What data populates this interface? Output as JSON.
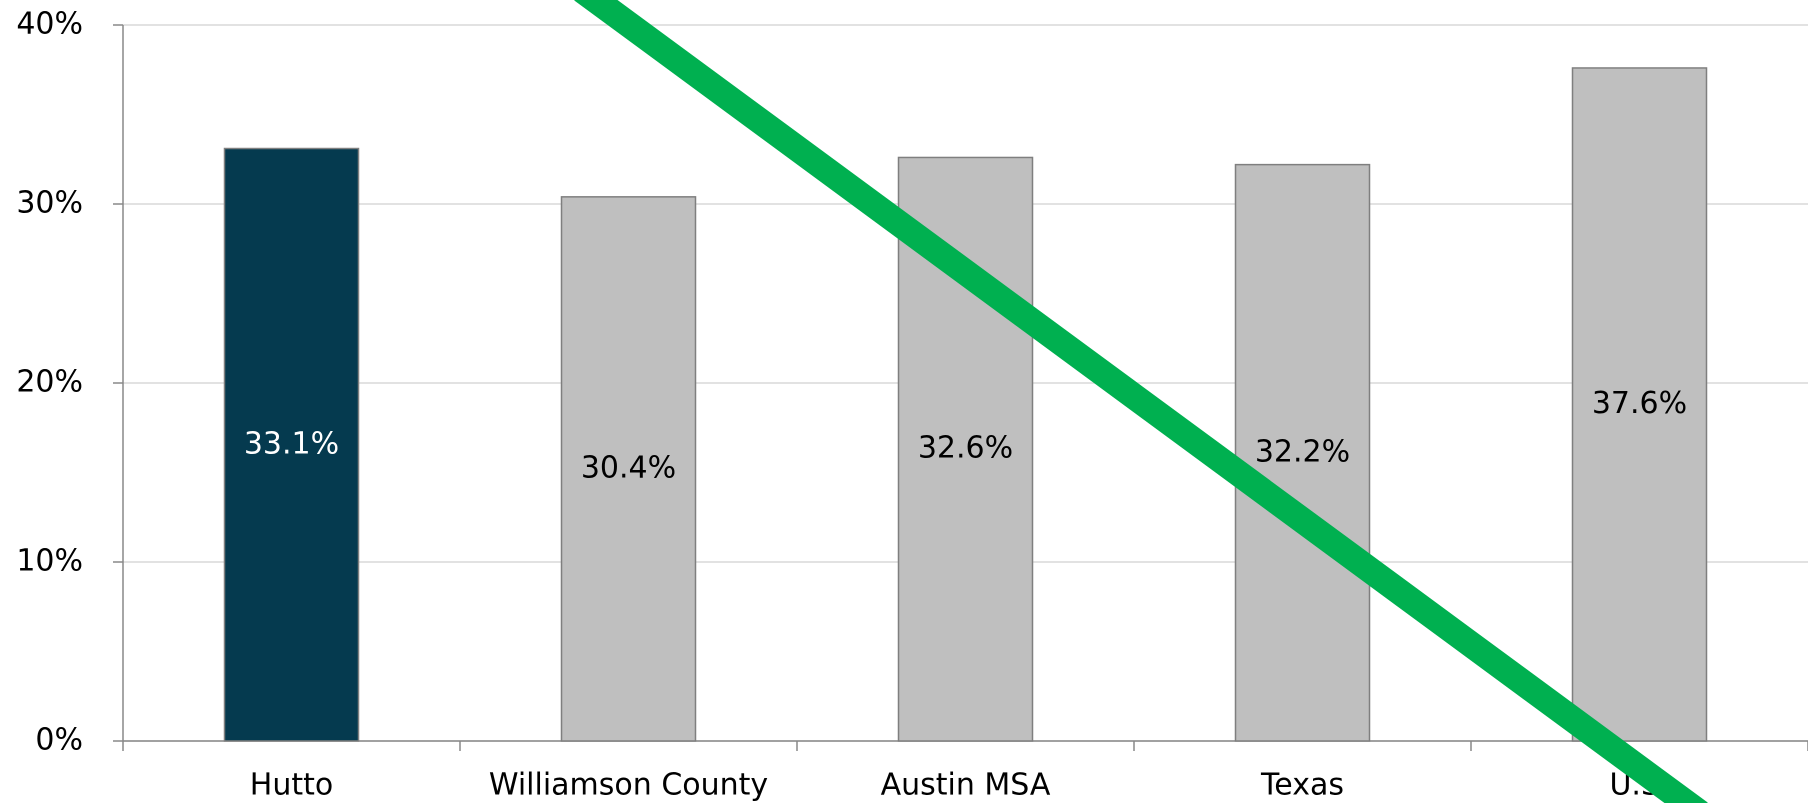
{
  "chart_data": {
    "type": "bar",
    "categories": [
      "Hutto",
      "Williamson County",
      "Austin MSA",
      "Texas",
      "U.S."
    ],
    "values": [
      33.1,
      30.4,
      32.6,
      32.2,
      37.6
    ],
    "value_labels": [
      "33.1%",
      "30.4%",
      "32.6%",
      "32.2%",
      "37.6%"
    ],
    "colors": [
      "#053a4f",
      "#bfbfbf",
      "#bfbfbf",
      "#bfbfbf",
      "#bfbfbf"
    ],
    "ylim": [
      0,
      40
    ],
    "yticks": [
      {
        "value": 0,
        "label": "0%"
      },
      {
        "value": 10,
        "label": "10%"
      },
      {
        "value": 20,
        "label": "20%"
      },
      {
        "value": 30,
        "label": "30%"
      },
      {
        "value": 40,
        "label": "40%"
      }
    ],
    "grid": true
  }
}
